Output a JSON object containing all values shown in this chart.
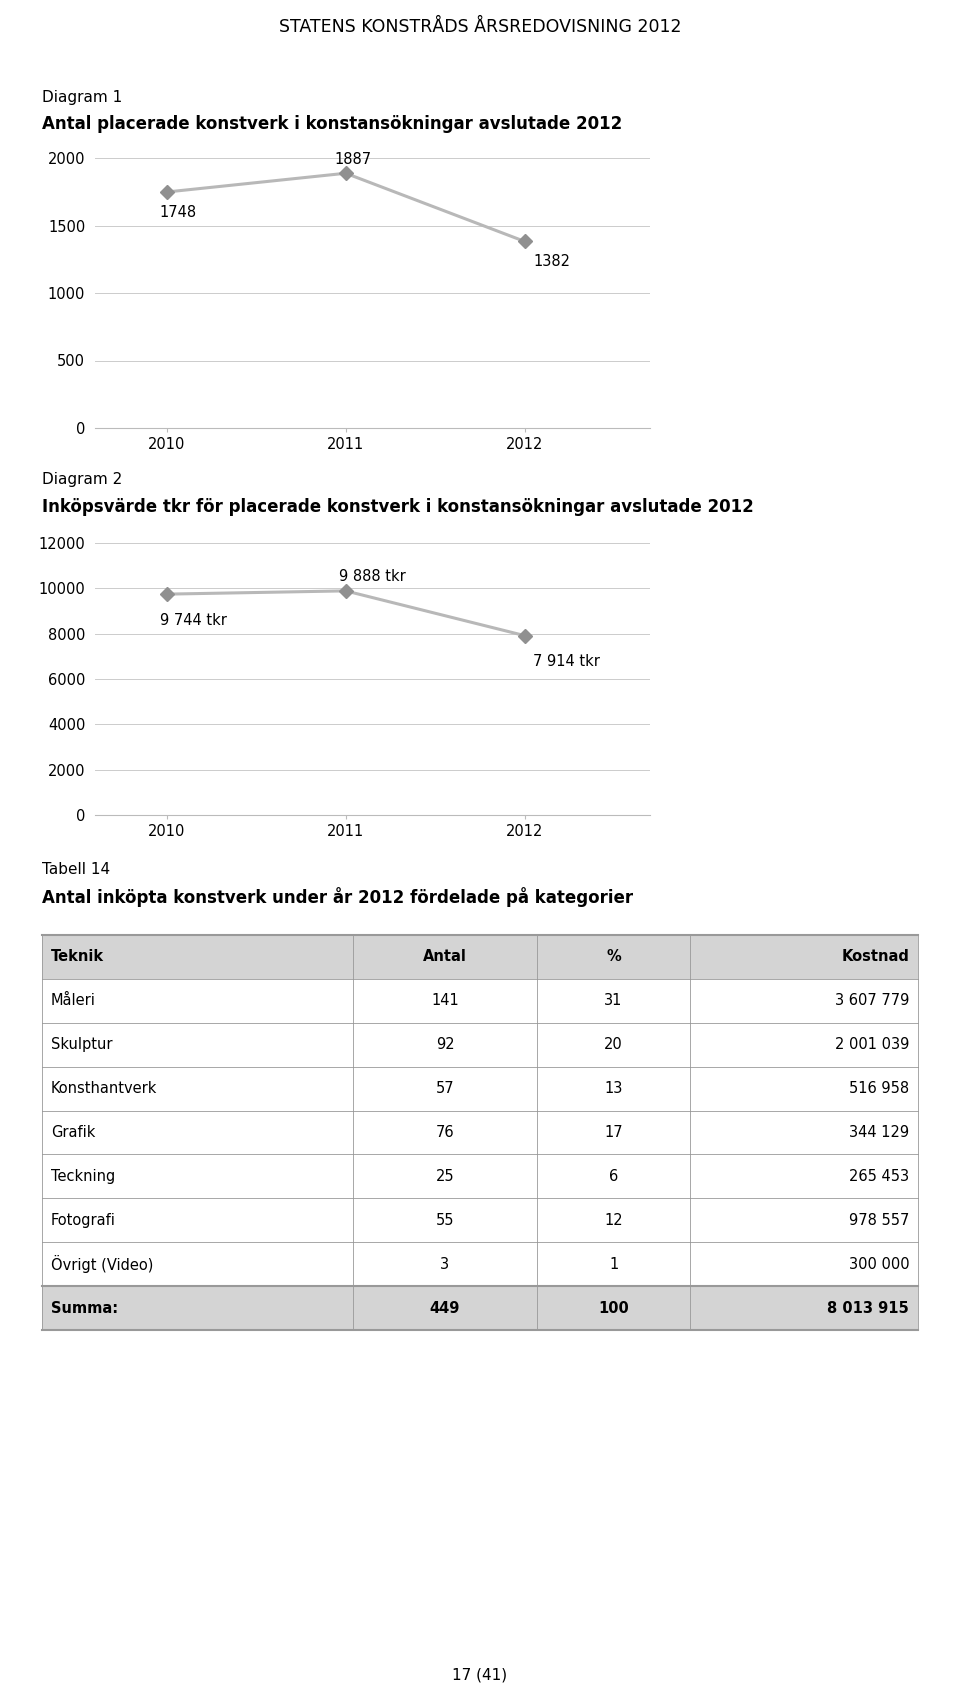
{
  "page_title": "STATENS KONSTRÅDS ÅRSREDOVISNING 2012",
  "diagram1_label": "Diagram 1",
  "diagram1_title": "Antal placerade konstverk i konstansökningar avslutade 2012",
  "diagram1_years": [
    2010,
    2011,
    2012
  ],
  "diagram1_values": [
    1748,
    1887,
    1382
  ],
  "diagram1_ylim": [
    0,
    2000
  ],
  "diagram1_yticks": [
    0,
    500,
    1000,
    1500,
    2000
  ],
  "diagram2_label": "Diagram 2",
  "diagram2_title": "Inköpsvärde tkr för placerade konstverk i konstansökningar avslutade 2012",
  "diagram2_years": [
    2010,
    2011,
    2012
  ],
  "diagram2_values": [
    9744,
    9888,
    7914
  ],
  "diagram2_labels": [
    "9 744 tkr",
    "9 888 tkr",
    "7 914 tkr"
  ],
  "diagram2_ylim": [
    0,
    12000
  ],
  "diagram2_yticks": [
    0,
    2000,
    4000,
    6000,
    8000,
    10000,
    12000
  ],
  "table_label": "Tabell 14",
  "table_title": "Antal inköpta konstverk under år 2012 fördelade på kategorier",
  "table_headers": [
    "Teknik",
    "Antal",
    "%",
    "Kostnad"
  ],
  "table_rows": [
    [
      "Måleri",
      "141",
      "31",
      "3 607 779"
    ],
    [
      "Skulptur",
      "92",
      "20",
      "2 001 039"
    ],
    [
      "Konsthantverk",
      "57",
      "13",
      "516 958"
    ],
    [
      "Grafik",
      "76",
      "17",
      "344 129"
    ],
    [
      "Teckning",
      "25",
      "6",
      "265 453"
    ],
    [
      "Fotografi",
      "55",
      "12",
      "978 557"
    ],
    [
      "Övrigt (Video)",
      "3",
      "1",
      "300 000"
    ]
  ],
  "table_sum_row": [
    "Summa:",
    "449",
    "100",
    "8 013 915"
  ],
  "line_color": "#b8b8b8",
  "marker_color": "#909090",
  "bg_color": "#ffffff",
  "page_footer": "17 (41)"
}
